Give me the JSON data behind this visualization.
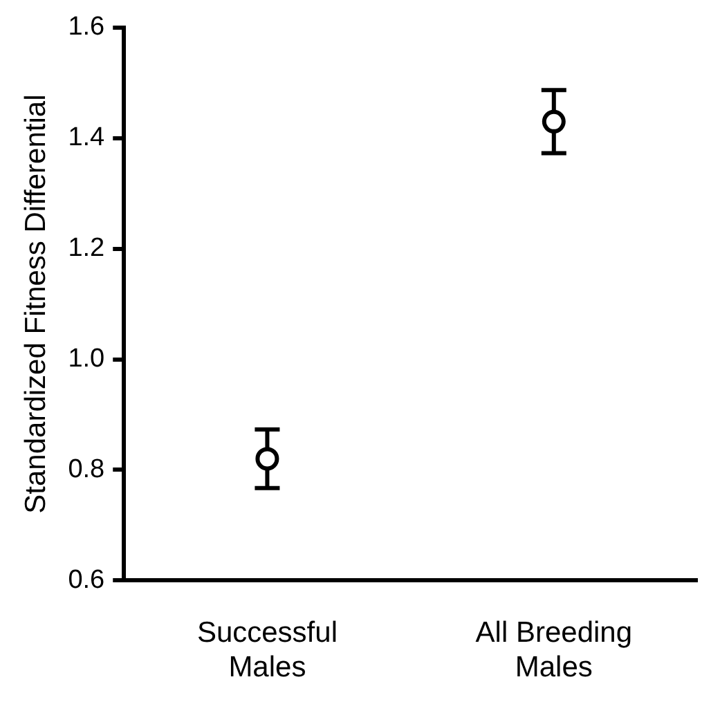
{
  "chart_data": {
    "type": "scatter",
    "ylabel": "Standardized Fitness Differential",
    "categories": [
      "Successful Males",
      "All Breeding Males"
    ],
    "values": [
      0.82,
      1.43
    ],
    "errors": [
      0.053,
      0.057
    ],
    "color": "#000000",
    "ylim": [
      0.6,
      1.6
    ],
    "yticks": [
      {
        "value": 0.6,
        "label": "0.6"
      },
      {
        "value": 0.8,
        "label": "0.8"
      },
      {
        "value": 1.0,
        "label": "1.0"
      },
      {
        "value": 1.2,
        "label": "1.2"
      },
      {
        "value": 1.4,
        "label": "1.4"
      },
      {
        "value": 1.6,
        "label": "1.6"
      }
    ],
    "marker": "circle",
    "grid": false,
    "legend": false
  }
}
